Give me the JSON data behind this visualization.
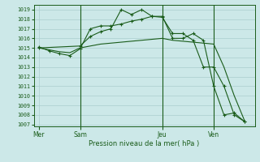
{
  "title": "Pression niveau de la mer( hPa )",
  "yticks": [
    1007,
    1008,
    1009,
    1010,
    1011,
    1012,
    1013,
    1014,
    1015,
    1016,
    1017,
    1018,
    1019
  ],
  "ymin": 1006.8,
  "ymax": 1019.5,
  "xtick_labels": [
    "Mer",
    "Sam",
    "Jeu",
    "Ven"
  ],
  "xtick_positions": [
    0,
    4,
    12,
    17
  ],
  "xmin": -0.5,
  "xmax": 21.0,
  "bg_color": "#cce8e8",
  "grid_color": "#aacece",
  "line_color": "#1a5c1a",
  "line1_x": [
    0,
    1,
    2,
    3,
    4,
    5,
    6,
    7,
    8,
    9,
    10,
    11,
    12,
    13,
    14,
    15,
    16,
    17,
    18,
    19,
    20
  ],
  "line1_y": [
    1015.1,
    1014.7,
    1014.4,
    1014.2,
    1014.9,
    1017.0,
    1017.3,
    1017.3,
    1017.5,
    1017.8,
    1018.0,
    1018.3,
    1018.2,
    1016.5,
    1016.5,
    1015.8,
    1013.0,
    1013.0,
    1011.0,
    1008.0,
    1007.3
  ],
  "line2_x": [
    0,
    1,
    2,
    3,
    4,
    5,
    6,
    7,
    8,
    9,
    10,
    11,
    12,
    13,
    14,
    15,
    16,
    17,
    18,
    19,
    20
  ],
  "line2_y": [
    1015.0,
    1014.8,
    1014.6,
    1014.5,
    1015.0,
    1015.2,
    1015.4,
    1015.5,
    1015.6,
    1015.7,
    1015.8,
    1015.9,
    1016.0,
    1015.8,
    1015.7,
    1015.6,
    1015.5,
    1015.4,
    1013.0,
    1010.0,
    1007.4
  ],
  "line3_x": [
    0,
    4,
    5,
    6,
    7,
    8,
    9,
    10,
    11,
    12,
    13,
    14,
    15,
    16,
    17,
    18,
    19,
    20
  ],
  "line3_y": [
    1015.0,
    1015.2,
    1016.2,
    1016.7,
    1017.0,
    1019.0,
    1018.5,
    1019.0,
    1018.3,
    1018.3,
    1016.0,
    1016.0,
    1016.5,
    1015.8,
    1011.0,
    1008.0,
    1008.2,
    1007.3
  ],
  "vline_positions": [
    4,
    12,
    17
  ],
  "figsize": [
    3.2,
    2.0
  ],
  "dpi": 100
}
